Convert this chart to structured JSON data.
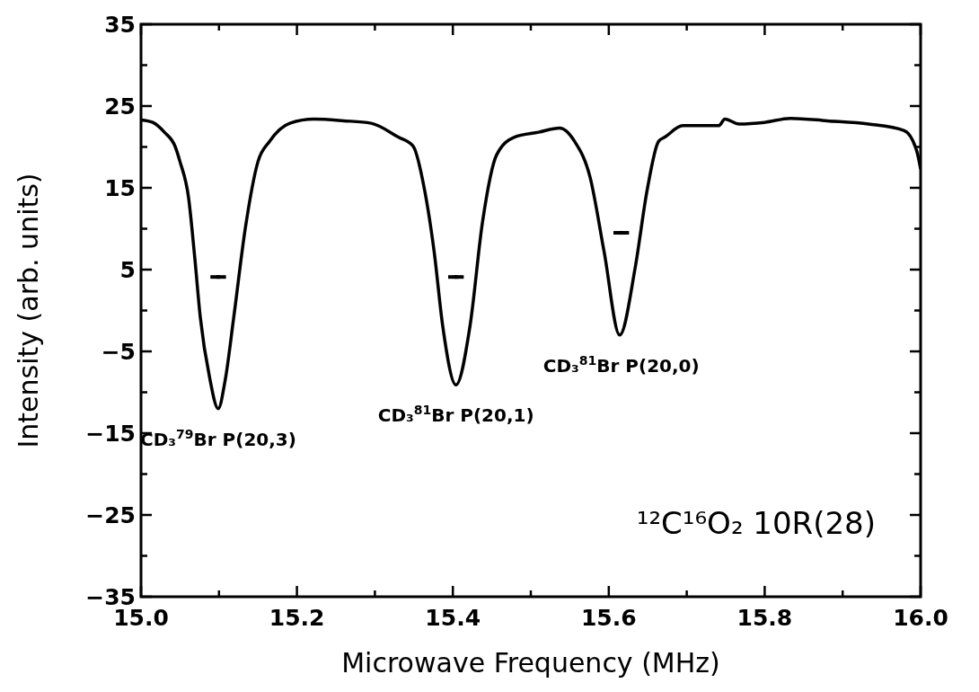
{
  "chart_data": {
    "type": "line",
    "xlabel": "Microwave Frequency (MHz)",
    "ylabel": "Intensity (arb. units)",
    "xlim": [
      15.0,
      16.0
    ],
    "ylim": [
      -35,
      35
    ],
    "xticks": [
      {
        "value": 15.0,
        "label": "15.0"
      },
      {
        "value": 15.1,
        "label": null
      },
      {
        "value": 15.2,
        "label": "15.2"
      },
      {
        "value": 15.3,
        "label": null
      },
      {
        "value": 15.4,
        "label": "15.4"
      },
      {
        "value": 15.5,
        "label": null
      },
      {
        "value": 15.6,
        "label": "15.6"
      },
      {
        "value": 15.7,
        "label": null
      },
      {
        "value": 15.8,
        "label": "15.8"
      },
      {
        "value": 15.9,
        "label": null
      },
      {
        "value": 16.0,
        "label": "16.0"
      }
    ],
    "yticks": [
      -35,
      {
        "value": -30,
        "label": null
      },
      -25,
      {
        "value": -20,
        "label": null
      },
      -15,
      {
        "value": -10,
        "label": null
      },
      -5,
      {
        "value": 0,
        "label": null
      },
      5,
      {
        "value": 10,
        "label": null
      },
      15,
      {
        "value": 20,
        "label": null
      },
      25,
      {
        "value": 30,
        "label": null
      },
      35
    ],
    "series": [
      {
        "type": "line",
        "color": "#000000",
        "x": [
          15.0,
          15.015,
          15.03,
          15.044,
          15.05,
          15.061,
          15.069,
          15.076,
          15.088,
          15.099,
          15.108,
          15.119,
          15.134,
          15.15,
          15.165,
          15.191,
          15.222,
          15.26,
          15.295,
          15.33,
          15.349,
          15.364,
          15.376,
          15.387,
          15.404,
          15.422,
          15.438,
          15.456,
          15.479,
          15.51,
          15.537,
          15.556,
          15.576,
          15.594,
          15.614,
          15.634,
          15.649,
          15.664,
          15.672,
          15.695,
          15.741,
          15.749,
          15.767,
          15.8,
          15.833,
          15.88,
          15.933,
          15.979,
          15.995,
          16.0
        ],
        "values": [
          23.3,
          23.0,
          21.8,
          20.0,
          18.2,
          13.8,
          6.4,
          -0.8,
          -8.2,
          -12.0,
          -8.5,
          -0.8,
          10.2,
          18.2,
          20.7,
          22.9,
          23.4,
          23.2,
          22.9,
          21.2,
          20.1,
          14.6,
          7.2,
          -1.9,
          -9.1,
          -1.9,
          10.8,
          19.0,
          21.2,
          21.8,
          22.3,
          20.7,
          16.3,
          7.2,
          -3.0,
          5.3,
          14.6,
          20.7,
          21.2,
          22.6,
          22.6,
          23.4,
          22.8,
          23.0,
          23.5,
          23.2,
          22.8,
          22.0,
          19.5,
          17.3
        ]
      },
      {
        "type": "scatter",
        "color": "#000000",
        "marker": "square",
        "xerrors": [
          0.01,
          0.01,
          0.01
        ],
        "x": [
          15.099,
          15.404,
          15.616
        ],
        "values": [
          4.1,
          4.1,
          9.5
        ]
      }
    ],
    "annotations": [
      "CD₃$^{79}$Br P(20,3)",
      "CD₃$^{81}$Br P(20,1)",
      "CD₃$^{81}$Br P(20,0)",
      "¹²C¹⁶O₂ 10R(28)"
    ],
    "grid": false,
    "line_style": "solid"
  }
}
